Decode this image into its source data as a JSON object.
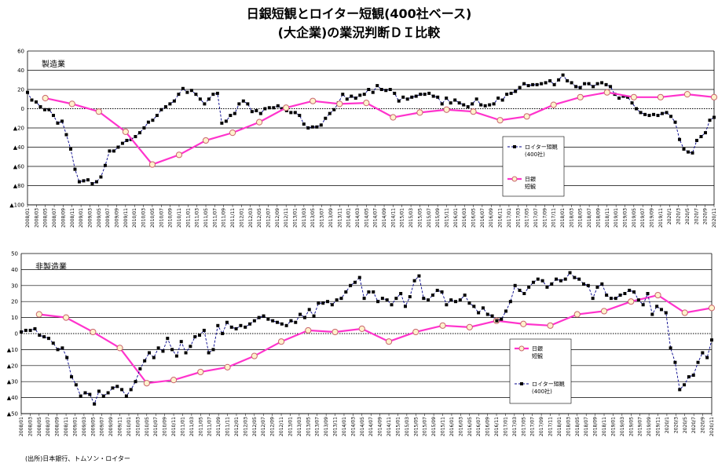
{
  "title_line1": "日銀短観とロイター短観(400社ベース)",
  "title_line2": "(大企業)の業況判断ＤＩ比較",
  "source": "(出所)日本銀行、トムソン・ロイター",
  "colors": {
    "reuters": "#00008b",
    "boj_line": "#ff33cc",
    "boj_marker_fill": "#fff2cc",
    "boj_marker_edge": "#c9656e"
  },
  "chart_data": [
    {
      "type": "line",
      "panel_label": "製造業",
      "ylim": [
        -100,
        60
      ],
      "yticks": [
        -100,
        -80,
        -60,
        -40,
        -20,
        0,
        20,
        40,
        60
      ],
      "ytick_labels": [
        "▲100",
        "▲80",
        "▲60",
        "▲40",
        "▲20",
        "0",
        "20",
        "40",
        "60"
      ],
      "xtick_labels": [
        "2008/01",
        "2008/03",
        "2008/05",
        "2008/07",
        "2008/09",
        "2008/11",
        "2009/01",
        "2009/03",
        "2009/05",
        "2009/07",
        "2009/09",
        "2009/11",
        "2010/01",
        "2010/03",
        "2010/05",
        "2010/07",
        "2010/09",
        "2010/11",
        "2011/01",
        "2011/03",
        "2011/05",
        "2011/07",
        "2011/09",
        "2011/11",
        "2012/01",
        "2012/03",
        "2012/05",
        "2012/07",
        "2012/09",
        "2012/11",
        "2013/01",
        "2013/03",
        "2013/05",
        "2013/07",
        "2013/09",
        "2013/11",
        "2014/01",
        "2014/03",
        "2014/05",
        "2014/07",
        "2014/09",
        "2014/11",
        "2015/01",
        "2015/03",
        "2015/05",
        "2015/07",
        "2015/09",
        "2015/11",
        "2016/01",
        "2016/03",
        "2016/05",
        "2016/07",
        "2016/09",
        "2016/11",
        "2017/01",
        "2017/03",
        "2017/05",
        "2017/07",
        "2017/09",
        "2017/11",
        "2018/01",
        "2018/03",
        "2018/05",
        "2018/07",
        "2018/09",
        "2018/11",
        "2019/01",
        "2019/03",
        "2019/05",
        "2019/07",
        "2019/09",
        "2019/11",
        "2020/1",
        "2020/3",
        "2020/5",
        "2020/7",
        "2020/9",
        "2020/11"
      ],
      "legend": [
        {
          "label": "ロイター短観",
          "sublabel": "(400社)"
        },
        {
          "label": "日銀",
          "sublabel": "短観"
        }
      ],
      "series": [
        {
          "name": "ロイター短観 (400社)",
          "values": [
            17,
            9,
            7,
            2,
            -1,
            -1,
            -7,
            -15,
            -13,
            -27,
            -42,
            -63,
            -76,
            -75,
            -74,
            -78,
            -76,
            -71,
            -59,
            -44,
            -44,
            -40,
            -36,
            -33,
            -32,
            -29,
            -25,
            -20,
            -14,
            -12,
            -7,
            -1,
            2,
            5,
            8,
            15,
            21,
            17,
            19,
            15,
            10,
            5,
            10,
            15,
            16,
            -15,
            -13,
            -7,
            -5,
            5,
            8,
            5,
            -3,
            -2,
            -5,
            0,
            1,
            1,
            3,
            0,
            -2,
            -4,
            -4,
            -7,
            -16,
            -20,
            -19,
            -19,
            -17,
            -10,
            -5,
            -1,
            6,
            15,
            10,
            13,
            11,
            14,
            15,
            20,
            17,
            24,
            20,
            19,
            20,
            16,
            8,
            12,
            10,
            12,
            13,
            15,
            15,
            16,
            13,
            12,
            5,
            11,
            6,
            9,
            6,
            4,
            2,
            5,
            10,
            4,
            3,
            4,
            5,
            11,
            9,
            15,
            16,
            18,
            22,
            26,
            24,
            25,
            25,
            26,
            27,
            29,
            25,
            30,
            35,
            29,
            27,
            23,
            22,
            26,
            26,
            23,
            26,
            27,
            25,
            23,
            15,
            11,
            13,
            12,
            6,
            0,
            -4,
            -6,
            -7,
            -6,
            -7,
            -5,
            -4,
            -8,
            -14,
            -32,
            -42,
            -45,
            -46,
            -33,
            -29,
            -25,
            -12,
            -9
          ]
        },
        {
          "name": "日銀 短観",
          "x_index": [
            2,
            5,
            8,
            11,
            14,
            17,
            20,
            23,
            26,
            29,
            32,
            35,
            38,
            41,
            44,
            47,
            50,
            53,
            56,
            59,
            62,
            65,
            68,
            71,
            74,
            77
          ],
          "values": [
            11,
            5,
            -3,
            -24,
            -58,
            -48,
            -33,
            -25,
            -14,
            1,
            8,
            5,
            6,
            -9,
            -4,
            -1,
            -3,
            -12,
            -8,
            4,
            12,
            17,
            12,
            12,
            15,
            12
          ]
        }
      ]
    },
    {
      "type": "line",
      "panel_label": "非製造業",
      "ylim": [
        -50,
        50
      ],
      "yticks": [
        -50,
        -40,
        -30,
        -20,
        -10,
        0,
        10,
        20,
        30,
        40,
        50
      ],
      "ytick_labels": [
        "▲50",
        "▲40",
        "▲30",
        "▲20",
        "▲10",
        "0",
        "10",
        "20",
        "30",
        "40",
        "50"
      ],
      "xtick_labels": [
        "2008/01",
        "2008/03",
        "2008/05",
        "2008/07",
        "2008/09",
        "2008/11",
        "2009/01",
        "2009/03",
        "2009/05",
        "2009/07",
        "2009/09",
        "2009/11",
        "2010/01",
        "2010/03",
        "2010/05",
        "2010/07",
        "2010/09",
        "2010/11",
        "2011/01",
        "2011/03",
        "2011/05",
        "2011/07",
        "2011/09",
        "2011/11",
        "2012/01",
        "2012/03",
        "2012/05",
        "2012/07",
        "2012/09",
        "2012/11",
        "2013/01",
        "2013/03",
        "2013/05",
        "2013/07",
        "2013/09",
        "2013/11",
        "2014/01",
        "2014/03",
        "2014/05",
        "2014/07",
        "2014/09",
        "2014/11",
        "2015/01",
        "2015/03",
        "2015/05",
        "2015/07",
        "2015/09",
        "2015/11",
        "2016/01",
        "2016/03",
        "2016/05",
        "2016/07",
        "2016/09",
        "2016/11",
        "2017/01",
        "2017/03",
        "2017/05",
        "2017/07",
        "2017/09",
        "2017/11",
        "2018/01",
        "2018/03",
        "2018/05",
        "2018/07",
        "2018/09",
        "2018/11",
        "2019/01",
        "2019/03",
        "2019/05",
        "2019/07",
        "2019/09",
        "2019/11",
        "2020/1",
        "2020/3",
        "2020/5",
        "2020/7",
        "2020/9",
        "2020/11"
      ],
      "legend": [
        {
          "label": "日銀",
          "sublabel": "短観"
        },
        {
          "label": "ロイター短観",
          "sublabel": "(400社)"
        }
      ],
      "series": [
        {
          "name": "日銀 短観",
          "x_index": [
            2,
            5,
            8,
            11,
            14,
            17,
            20,
            23,
            26,
            29,
            32,
            35,
            38,
            41,
            44,
            47,
            50,
            53,
            56,
            59,
            62,
            65,
            68,
            71,
            74,
            77
          ],
          "values": [
            12,
            10,
            1,
            -9,
            -31,
            -29,
            -24,
            -21,
            -14,
            -5,
            2,
            1,
            3,
            -5,
            1,
            5,
            4,
            8,
            6,
            5,
            12,
            14,
            20,
            24,
            13,
            16
          ]
        },
        {
          "name": "ロイター短観 (400社)",
          "values": [
            1,
            2,
            2,
            3,
            -1,
            -2,
            -3,
            -6,
            -10,
            -9,
            -15,
            -27,
            -32,
            -39,
            -37,
            -38,
            -44,
            -36,
            -39,
            -37,
            -34,
            -33,
            -35,
            -39,
            -35,
            -30,
            -22,
            -17,
            -12,
            -15,
            -9,
            -11,
            -3,
            -10,
            -14,
            -5,
            -12,
            -8,
            -2,
            -1,
            2,
            -12,
            -10,
            5,
            0,
            7,
            4,
            3,
            5,
            4,
            6,
            8,
            10,
            11,
            9,
            8,
            7,
            6,
            5,
            8,
            7,
            12,
            10,
            15,
            11,
            19,
            19,
            20,
            18,
            21,
            22,
            26,
            30,
            32,
            35,
            22,
            26,
            26,
            20,
            22,
            21,
            18,
            22,
            25,
            17,
            23,
            33,
            36,
            22,
            21,
            24,
            27,
            26,
            18,
            21,
            20,
            21,
            24,
            19,
            17,
            13,
            16,
            12,
            11,
            8,
            9,
            14,
            20,
            30,
            27,
            25,
            29,
            32,
            34,
            33,
            29,
            31,
            34,
            33,
            34,
            38,
            35,
            34,
            31,
            30,
            22,
            29,
            31,
            24,
            22,
            22,
            24,
            25,
            27,
            26,
            21,
            18,
            25,
            12,
            17,
            15,
            13,
            -9,
            -18,
            -35,
            -32,
            -27,
            -26,
            -18,
            -12,
            -15,
            -4
          ]
        }
      ]
    }
  ]
}
